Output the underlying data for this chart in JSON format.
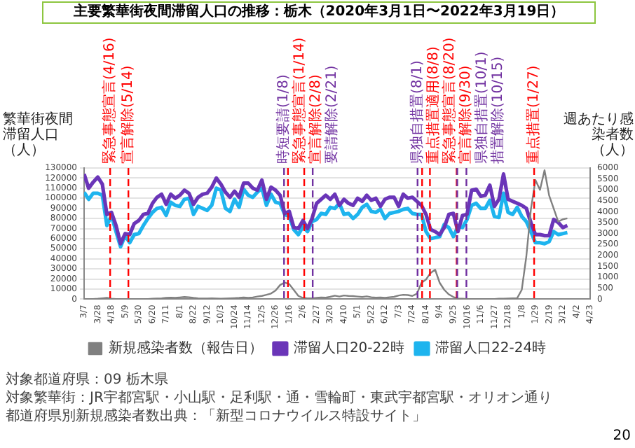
{
  "chart_data": {
    "type": "line",
    "title": "主要繁華街夜間滞留人口の推移：栃木（2020年3月1日〜2022年3月19日）",
    "ylabel": "繁華街夜間滞留人口（人）",
    "y2label": "週あたり感染者数（人）",
    "x": [
      "2020-03-07",
      "2020-03-14",
      "2020-03-21",
      "2020-03-28",
      "2020-04-04",
      "2020-04-11",
      "2020-04-18",
      "2020-04-25",
      "2020-05-02",
      "2020-05-09",
      "2020-05-16",
      "2020-05-23",
      "2020-05-30",
      "2020-06-06",
      "2020-06-13",
      "2020-06-20",
      "2020-06-27",
      "2020-07-04",
      "2020-07-11",
      "2020-07-18",
      "2020-07-25",
      "2020-08-01",
      "2020-08-08",
      "2020-08-15",
      "2020-08-22",
      "2020-08-29",
      "2020-09-05",
      "2020-09-12",
      "2020-09-19",
      "2020-09-26",
      "2020-10-03",
      "2020-10-10",
      "2020-10-17",
      "2020-10-24",
      "2020-10-31",
      "2020-11-07",
      "2020-11-14",
      "2020-11-21",
      "2020-11-28",
      "2020-12-05",
      "2020-12-12",
      "2020-12-19",
      "2020-12-26",
      "2021-01-02",
      "2021-01-09",
      "2021-01-16",
      "2021-01-23",
      "2021-01-30",
      "2021-02-06",
      "2021-02-13",
      "2021-02-20",
      "2021-02-27",
      "2021-03-06",
      "2021-03-13",
      "2021-03-20",
      "2021-03-27",
      "2021-04-03",
      "2021-04-10",
      "2021-04-17",
      "2021-04-24",
      "2021-05-01",
      "2021-05-08",
      "2021-05-15",
      "2021-05-22",
      "2021-05-29",
      "2021-06-05",
      "2021-06-12",
      "2021-06-19",
      "2021-06-26",
      "2021-07-03",
      "2021-07-10",
      "2021-07-17",
      "2021-07-24",
      "2021-07-31",
      "2021-08-07",
      "2021-08-14",
      "2021-08-21",
      "2021-08-28",
      "2021-09-04",
      "2021-09-11",
      "2021-09-18",
      "2021-09-25",
      "2021-10-02",
      "2021-10-09",
      "2021-10-16",
      "2021-10-23",
      "2021-10-30",
      "2021-11-06",
      "2021-11-13",
      "2021-11-20",
      "2021-11-27",
      "2021-12-04",
      "2021-12-11",
      "2021-12-18",
      "2021-12-25",
      "2022-01-01",
      "2022-01-08",
      "2022-01-15",
      "2022-01-22",
      "2022-01-29",
      "2022-02-05",
      "2022-02-12",
      "2022-02-19",
      "2022-02-26",
      "2022-03-05",
      "2022-03-12",
      "2022-03-19"
    ],
    "series": [
      {
        "name": "滞留人口20-22時",
        "color": "#6a35b8",
        "values": [
          124000,
          110000,
          116000,
          121000,
          114000,
          84000,
          86000,
          73000,
          55000,
          65000,
          64000,
          75000,
          78000,
          84000,
          85000,
          95000,
          101000,
          104000,
          94000,
          104000,
          100000,
          103000,
          108000,
          105000,
          94000,
          101000,
          104000,
          105000,
          111000,
          120000,
          114000,
          106000,
          101000,
          107000,
          101000,
          115000,
          115000,
          110000,
          108000,
          118000,
          99000,
          111000,
          108000,
          103000,
          85000,
          87000,
          71000,
          70000,
          78000,
          70000,
          80000,
          95000,
          99000,
          103000,
          99000,
          104000,
          93000,
          99000,
          95000,
          93000,
          100000,
          97000,
          103000,
          98000,
          100000,
          92000,
          99000,
          101000,
          101000,
          92000,
          104000,
          100000,
          101000,
          97000,
          93000,
          84000,
          69000,
          67000,
          64000,
          71000,
          84000,
          85000,
          67000,
          83000,
          84000,
          108000,
          109000,
          102000,
          103000,
          113000,
          92000,
          99000,
          124000,
          99000,
          97000,
          95000,
          93000,
          90000,
          76000,
          64000,
          64000,
          63000,
          63000,
          79000,
          76000,
          71000,
          73000
        ]
      },
      {
        "name": "滞留人口22-24時",
        "color": "#1eb4ee",
        "values": [
          106000,
          99000,
          105000,
          105000,
          103000,
          73000,
          83000,
          67000,
          52000,
          63000,
          56000,
          64000,
          65000,
          73000,
          80000,
          86000,
          90000,
          91000,
          83000,
          96000,
          93000,
          92000,
          99000,
          100000,
          84000,
          92000,
          90000,
          88000,
          93000,
          110000,
          108000,
          90000,
          87000,
          99000,
          91000,
          109000,
          103000,
          101000,
          106000,
          110000,
          93000,
          104000,
          96000,
          95000,
          84000,
          82000,
          69000,
          64000,
          72000,
          67000,
          77000,
          79000,
          85000,
          84000,
          91000,
          90000,
          95000,
          84000,
          85000,
          80000,
          84000,
          91000,
          94000,
          87000,
          86000,
          89000,
          80000,
          85000,
          86000,
          87000,
          89000,
          90000,
          85000,
          84000,
          84000,
          67000,
          60000,
          61000,
          62000,
          74000,
          71000,
          62000,
          72000,
          71000,
          79000,
          93000,
          95000,
          90000,
          90000,
          98000,
          82000,
          81000,
          105000,
          86000,
          84000,
          91000,
          82000,
          77000,
          67000,
          56000,
          56000,
          55000,
          57000,
          67000,
          64000,
          65000,
          66000
        ]
      },
      {
        "name": "新規感染者数（報告日）",
        "color": "#808080",
        "axis": "y2",
        "values": [
          0,
          0,
          10,
          20,
          40,
          60,
          20,
          10,
          0,
          0,
          0,
          0,
          0,
          0,
          10,
          20,
          30,
          40,
          60,
          70,
          60,
          80,
          100,
          90,
          60,
          40,
          30,
          30,
          40,
          30,
          20,
          30,
          40,
          50,
          60,
          80,
          60,
          80,
          120,
          150,
          200,
          260,
          400,
          650,
          760,
          690,
          420,
          150,
          60,
          40,
          40,
          60,
          80,
          70,
          110,
          160,
          120,
          170,
          150,
          140,
          120,
          100,
          130,
          90,
          70,
          80,
          60,
          90,
          110,
          170,
          200,
          190,
          150,
          250,
          750,
          900,
          1200,
          1350,
          750,
          430,
          220,
          100,
          30,
          20,
          10,
          10,
          10,
          10,
          10,
          10,
          10,
          20,
          20,
          30,
          40,
          50,
          430,
          1950,
          4100,
          5450,
          5000,
          5900,
          4750,
          4150,
          3550,
          3650,
          3700
        ]
      }
    ],
    "xlim": [
      "2020-03-07",
      "2022-04-23"
    ],
    "xticks": [
      {
        "value": "2020-03-07",
        "label": "3/7"
      },
      {
        "value": "2020-03-28",
        "label": "3/28"
      },
      {
        "value": "2020-04-18",
        "label": "4/18"
      },
      {
        "value": "2020-05-09",
        "label": "5/9"
      },
      {
        "value": "2020-05-30",
        "label": "5/30"
      },
      {
        "value": "2020-06-20",
        "label": "6/20"
      },
      {
        "value": "2020-07-11",
        "label": "7/11"
      },
      {
        "value": "2020-08-01",
        "label": "8/1"
      },
      {
        "value": "2020-08-22",
        "label": "8/22"
      },
      {
        "value": "2020-09-12",
        "label": "9/12"
      },
      {
        "value": "2020-10-03",
        "label": "10/3"
      },
      {
        "value": "2020-10-24",
        "label": "10/24"
      },
      {
        "value": "2020-11-14",
        "label": "11/14"
      },
      {
        "value": "2020-12-05",
        "label": "12/5"
      },
      {
        "value": "2020-12-26",
        "label": "12/26"
      },
      {
        "value": "2021-01-16",
        "label": "1/16"
      },
      {
        "value": "2021-02-06",
        "label": "2/6"
      },
      {
        "value": "2021-02-27",
        "label": "2/27"
      },
      {
        "value": "2021-03-20",
        "label": "3/20"
      },
      {
        "value": "2021-04-10",
        "label": "4/10"
      },
      {
        "value": "2021-05-01",
        "label": "5/1"
      },
      {
        "value": "2021-05-22",
        "label": "5/22"
      },
      {
        "value": "2021-06-12",
        "label": "6/12"
      },
      {
        "value": "2021-07-03",
        "label": "7/3"
      },
      {
        "value": "2021-07-24",
        "label": "7/24"
      },
      {
        "value": "2021-08-14",
        "label": "8/14"
      },
      {
        "value": "2021-09-04",
        "label": "9/4"
      },
      {
        "value": "2021-09-25",
        "label": "9/25"
      },
      {
        "value": "2021-10-16",
        "label": "10/16"
      },
      {
        "value": "2021-11-06",
        "label": "11/6"
      },
      {
        "value": "2021-11-27",
        "label": "11/27"
      },
      {
        "value": "2021-12-18",
        "label": "12/18"
      },
      {
        "value": "2022-01-08",
        "label": "1/8"
      },
      {
        "value": "2022-01-29",
        "label": "1/29"
      },
      {
        "value": "2022-02-19",
        "label": "2/19"
      },
      {
        "value": "2022-03-12",
        "label": "3/12"
      },
      {
        "value": "2022-04-02",
        "label": "4/2"
      },
      {
        "value": "2022-04-23",
        "label": "4/23"
      }
    ],
    "ylim": [
      0,
      130000
    ],
    "yticks": [
      0,
      10000,
      20000,
      30000,
      40000,
      50000,
      60000,
      70000,
      80000,
      90000,
      100000,
      110000,
      120000,
      130000
    ],
    "y2lim": [
      0,
      6000
    ],
    "y2ticks": [
      0,
      500,
      1000,
      1500,
      2000,
      2500,
      3000,
      3500,
      4000,
      4500,
      5000,
      5500,
      6000
    ],
    "grid": "y",
    "legend": "bottom",
    "ref_lines": [
      {
        "axis": "x",
        "value": "2020-04-16",
        "label": "緊急事態宣言(4/16)",
        "color": "#ff0000",
        "line_style": "dashed"
      },
      {
        "axis": "x",
        "value": "2020-05-14",
        "label": "宣言解除(5/14)",
        "color": "#ff0000",
        "line_style": "dashed"
      },
      {
        "axis": "x",
        "value": "2021-01-08",
        "label": "時短要請(1/8)",
        "color": "#7030a0",
        "line_style": "dashed"
      },
      {
        "axis": "x",
        "value": "2021-01-14",
        "label": "緊急事態宣言(1/14)",
        "color": "#ff0000",
        "line_style": "dashed"
      },
      {
        "axis": "x",
        "value": "2021-02-08",
        "label": "宣言解除(2/8)",
        "color": "#ff0000",
        "line_style": "dashed"
      },
      {
        "axis": "x",
        "value": "2021-02-21",
        "label": "要請解除(2/21)",
        "color": "#7030a0",
        "line_style": "dashed"
      },
      {
        "axis": "x",
        "value": "2021-08-01",
        "label": "県独自措置(8/1)",
        "color": "#7030a0",
        "line_style": "dashed"
      },
      {
        "axis": "x",
        "value": "2021-08-08",
        "label": "重点措置適用(8/8)",
        "color": "#ff0000",
        "line_style": "dashed"
      },
      {
        "axis": "x",
        "value": "2021-08-20",
        "label": "緊急事態宣言(8/20)",
        "color": "#ff0000",
        "line_style": "dashed"
      },
      {
        "axis": "x",
        "value": "2021-09-30",
        "label": "宣言解除(9/30)",
        "color": "#ff0000",
        "line_style": "dashed"
      },
      {
        "axis": "x",
        "value": "2021-10-01",
        "label": "県独自措置(10/1)",
        "color": "#7030a0",
        "line_style": "dashed"
      },
      {
        "axis": "x",
        "value": "2021-10-15",
        "label": "措置解除(10/15)",
        "color": "#7030a0",
        "line_style": "dashed"
      },
      {
        "axis": "x",
        "value": "2022-01-27",
        "label": "重点措置(1/27)",
        "color": "#ff0000",
        "line_style": "dashed"
      }
    ],
    "annotations": [
      "対象都道府県：09 栃木県",
      "対象繁華街：JR宇都宮駅・小山駅・足利駅・通・雪輪町・東武宇都宮駅・オリオン通り",
      "都道府県別新規感染者数出典：「新型コロナウイルス特設サイト」",
      "20"
    ]
  }
}
